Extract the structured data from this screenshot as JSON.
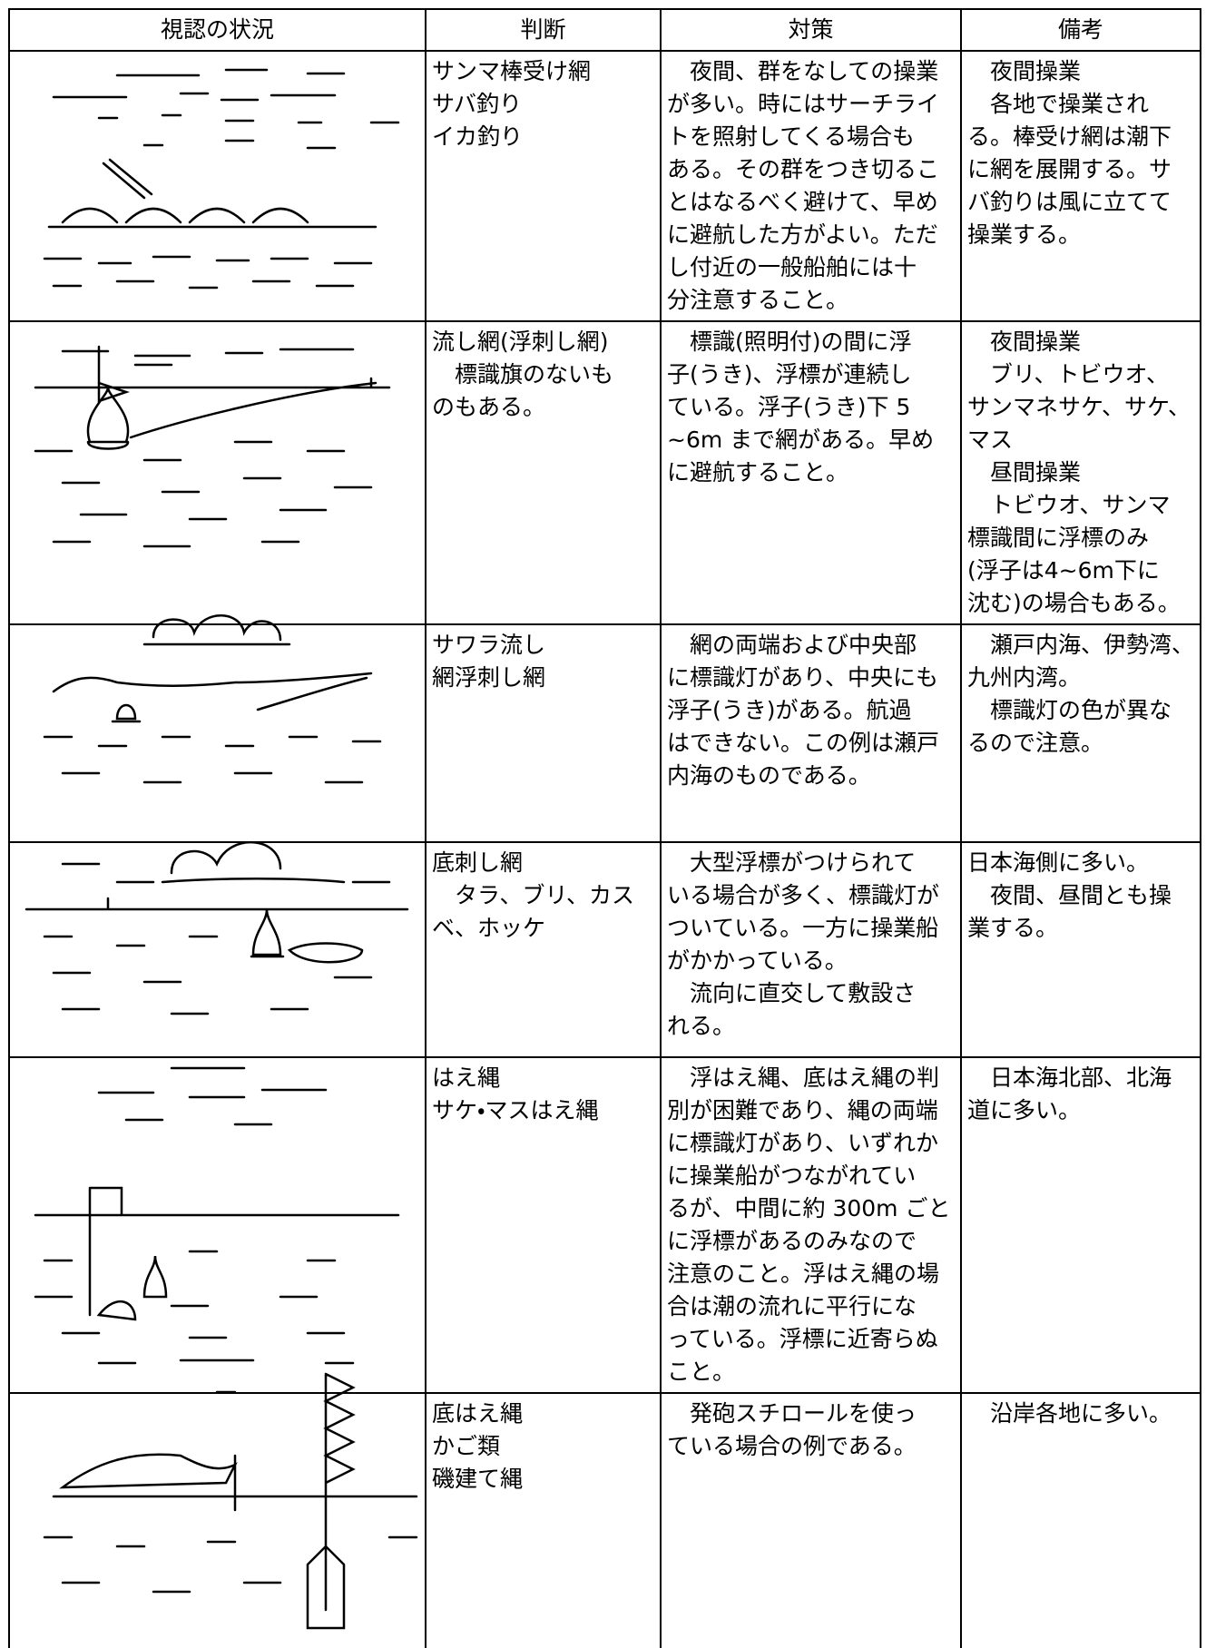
{
  "header": [
    "視認の状況",
    "判断",
    "対策",
    "備考"
  ],
  "rows": [
    {
      "judgment": [
        "サンマ棒受け網",
        "サバ釣り",
        "イカ釣り"
      ],
      "measures": [
        "　夜間、群をなしての操業",
        "が多い。時にはサーチライ",
        "トを照射してくる場合も",
        "ある。その群をつき切るこ",
        "とはなるべく避けて、早め",
        "に避航した方がよい。ただ",
        "し付近の一般船舶には十",
        "分注意すること。"
      ],
      "notes": [
        "　夜間操業",
        "　各地で操業され",
        "る。棒受け網は潮下",
        "に網を展開する。サ",
        "バ釣りは風に立てて",
        "操業する。"
      ]
    },
    {
      "judgment": [
        "流し網(浮刺し網)",
        "　標識旗のないも",
        "のもある。"
      ],
      "measures": [
        "　標識(照明付)の間に浮",
        "子(うき)、浮標が連続し",
        "ている。浮子(うき)下 5",
        "~6m まで網がある。早め",
        "に避航すること。"
      ],
      "notes": [
        "　夜間操業",
        "　ブリ、トビウオ、",
        "サンマネサケ、サケ、",
        "マス",
        "　昼間操業",
        "　トビウオ、サンマ",
        "標識間に浮標のみ",
        "(浮子は4~6m下に",
        "沈む)の場合もある。"
      ]
    },
    {
      "judgment": [
        "サワラ流し",
        "網浮刺し網"
      ],
      "measures": [
        "　網の両端および中央部",
        "に標識灯があり、中央にも",
        "浮子(うき)がある。航過",
        "はできない。この例は瀬戸",
        "内海のものである。"
      ],
      "notes": [
        "　瀬戸内海、伊勢湾、",
        "九州内湾。",
        "　標識灯の色が異な",
        "るので注意。"
      ]
    },
    {
      "judgment": [
        "底刺し網",
        "　タラ、ブリ、カス",
        "ベ、ホッケ"
      ],
      "measures": [
        "　大型浮標がつけられて",
        "いる場合が多く、標識灯が",
        "ついている。一方に操業船",
        "がかかっている。",
        "　流向に直交して敷設さ",
        "れる。"
      ],
      "notes": [
        "日本海側に多い。",
        "　夜間、昼間とも操",
        "業する。"
      ]
    },
    {
      "judgment": [
        "はえ縄",
        "サケ・マスはえ縄"
      ],
      "measures": [
        "　浮はえ縄、底はえ縄の判",
        "別が困難であり、縄の両端",
        "に標識灯があり、いずれか",
        "に操業船がつながれてい",
        "るが、中間に約 300m ごと",
        "に浮標があるのみなので",
        "注意のこと。浮はえ縄の場",
        "合は潮の流れに平行にな",
        "っている。浮標に近寄らぬ",
        "こと。"
      ],
      "notes": [
        "　日本海北部、北海",
        "道に多い。"
      ]
    },
    {
      "judgment": [
        "底はえ縄",
        "かご類",
        "磯建て縄"
      ],
      "measures": [
        "　発砲スチロールを使っ",
        "ている場合の例である。"
      ],
      "notes": [
        "　沿岸各地に多い。"
      ]
    }
  ]
}
